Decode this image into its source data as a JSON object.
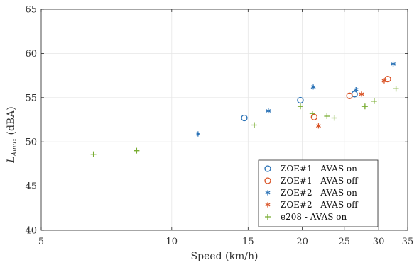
{
  "chart_data": {
    "type": "scatter",
    "xscale": "log",
    "xlabel": "Speed (km/h)",
    "ylabel_main": "L",
    "ylabel_sub": "Amax",
    "ylabel_unit": " (dBA)",
    "xlim": [
      5,
      35
    ],
    "ylim": [
      40,
      65
    ],
    "xticks": [
      5,
      10,
      15,
      20,
      25,
      30,
      35
    ],
    "yticks": [
      40,
      45,
      50,
      55,
      60,
      65
    ],
    "grid": true,
    "legend_position": "bottom-right",
    "series": [
      {
        "name": "ZOE#1 - AVAS on",
        "marker": "circle",
        "color": "#2a72b6",
        "points": [
          [
            14.7,
            52.7
          ],
          [
            19.8,
            54.7
          ],
          [
            26.4,
            55.4
          ]
        ]
      },
      {
        "name": "ZOE#1 - AVAS off",
        "marker": "circle",
        "color": "#d95326",
        "points": [
          [
            21.3,
            52.8
          ],
          [
            25.7,
            55.2
          ],
          [
            31.5,
            57.1
          ]
        ]
      },
      {
        "name": "ZOE#2 - AVAS on",
        "marker": "asterisk",
        "color": "#2a72b6",
        "points": [
          [
            11.5,
            50.9
          ],
          [
            16.7,
            53.5
          ],
          [
            21.2,
            56.2
          ],
          [
            26.6,
            55.9
          ],
          [
            32.4,
            58.8
          ]
        ]
      },
      {
        "name": "ZOE#2 - AVAS off",
        "marker": "asterisk",
        "color": "#d95326",
        "points": [
          [
            21.8,
            51.8
          ],
          [
            27.4,
            55.4
          ],
          [
            30.9,
            56.9
          ]
        ]
      },
      {
        "name": "e208 - AVAS on",
        "marker": "plus",
        "color": "#77ac30",
        "points": [
          [
            6.6,
            48.6
          ],
          [
            8.3,
            49.0
          ],
          [
            15.5,
            51.9
          ],
          [
            19.8,
            54.0
          ],
          [
            21.1,
            53.2
          ],
          [
            22.8,
            52.9
          ],
          [
            23.7,
            52.7
          ],
          [
            27.9,
            54.0
          ],
          [
            29.3,
            54.6
          ],
          [
            32.9,
            56.0
          ]
        ]
      }
    ]
  }
}
